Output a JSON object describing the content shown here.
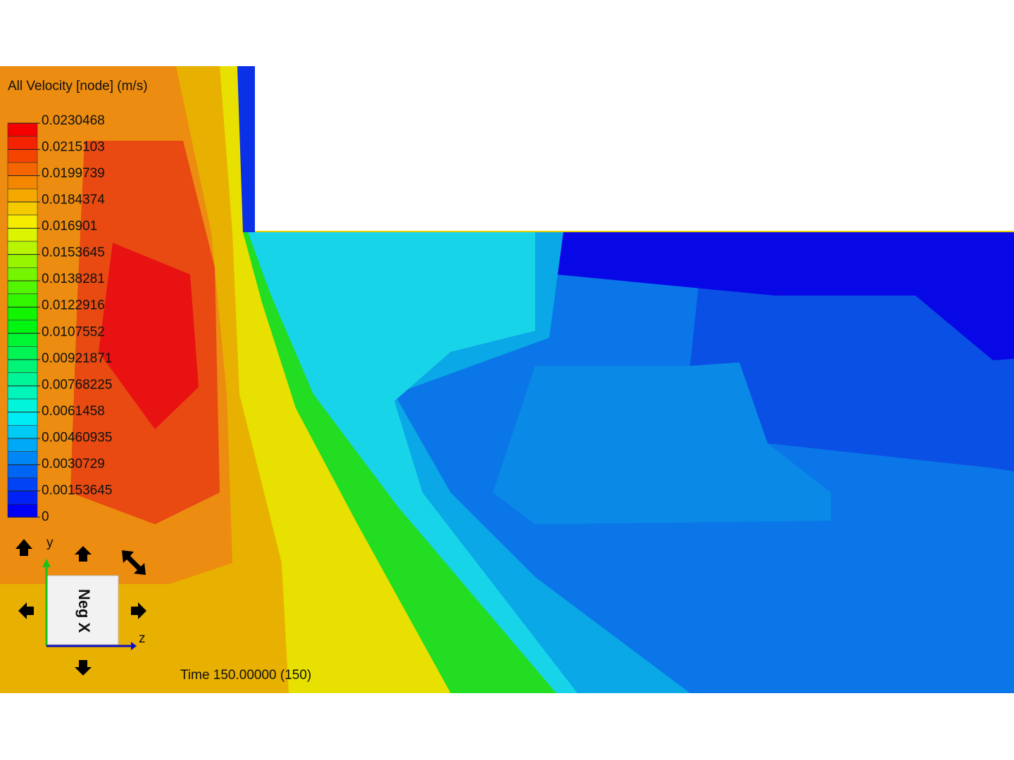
{
  "legend": {
    "title": "All Velocity [node] (m/s)",
    "labels": [
      "0.0230468",
      "0.0215103",
      "0.0199739",
      "0.0184374",
      "0.016901",
      "0.0153645",
      "0.0138281",
      "0.0122916",
      "0.0107552",
      "0.00921871",
      "0.00768225",
      "0.0061458",
      "0.00460935",
      "0.0030729",
      "0.00153645",
      "0"
    ]
  },
  "triad": {
    "y": "y",
    "z": "z",
    "cube": "Neg X"
  },
  "time": "Time 150.00000 (150)"
}
